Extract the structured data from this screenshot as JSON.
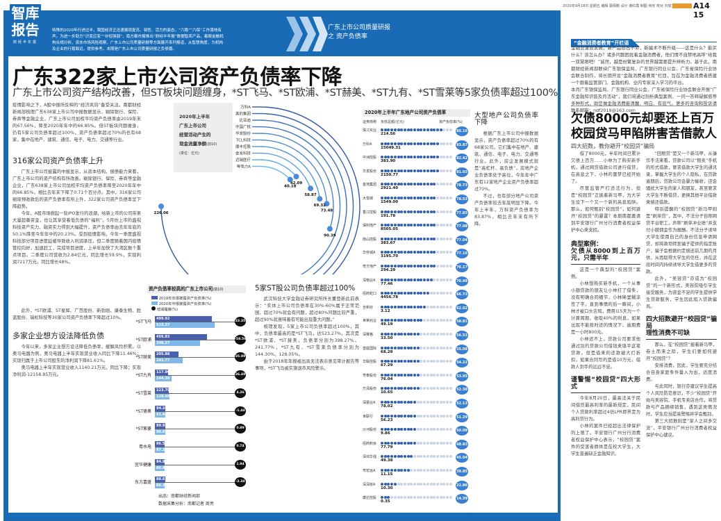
{
  "masthead": {
    "logo_line1": "智库",
    "logo_line2": "报告",
    "logo_sub": "财经半年报",
    "intro": "特殊的2020年行进过半，我国经济正迅速展现复苏、韧性、活力的姿态，“六稳”“六保”工作落地有声。为进一步助力“识变应变”“补短强弱”，南方都市报推出“财经半年报”数据智库产品，着眼金融机构合规分析、资本市场风险观察、广东上市公司质量研报等方面展开系列报道，从智慧角度，为机构及企业的行稳致远，提供参考。本期是广东上市公司质量研报之负债篇。",
    "series_line1": "广东上市公司质量研报",
    "series_line2": "之 资产负债率"
  },
  "headline": {
    "title": "广东322家上市公司资产负债率下降",
    "subtitle": "广东上市公司资产结构改善，但ST板块问题缠身，*ST飞马、*ST欧浦、*ST赫美、*ST九有、*ST雪莱等5家负债率超过100%"
  },
  "left": {
    "lead": "疫情影响之下，A股中报所反映的“经济风向”备受关注。南都财经新闻部梳理广东638家上市公司中报数据显示，剔除银行、保险、券商等金融企业，广东上市公司加权平均资产负债率由2019年末的67.56%，降至2020年年中的66.85%。但ST板块问题缠身，仍有5家公司负债率超过100%，资产负债率超过70%的也有68家，集中在地产、建筑、通信、电子、电力、交通等行业。",
    "h1": "316家公司资产负债率上升",
    "p1": "广东上市公司披露的中报显示，从资本结构、偿债能力来看，广东上市公司的资产结构有所改善。剔除银行、保险、券商等金融企业，广东638家上市公司加权平均资产负债率降至2020年年中的66.85%，相比去年末下降了0.71个百分点。其中，316家公司剔除预收款后的资产负债率有所上升，322家公司资产负债率呈下降趋势。",
    "p2": "今年，A股市场掀起一轮IPO发行的浪潮，给新上市的公司带来大量超募资金，也让其享受着低负债的“福利”。5月份上市的盛视科技资产实力、融资实力得到大幅提升，资产负债率由去年年底的50.1%降至今年年中的20.23%。受到疫情影响，今年一季度盛视科技部分项目进度延缓导致收入利润承压，但二季度随着国内疫情管控向好，加速赶工，完成项目进度，上半年加快了大湾区数个重点项目。二季度公司营收为2.84亿元，同比增长59.9%，实现利润7217万元，同比增长48%。",
    "p3": "此外，*ST欧浦、ST星辉、广百股份、新劲刚、康泰生物、胜蓝股份、瑞松科技等30家公司资产负债率下降超过10%。",
    "h2": "多家企业想方设法降低负债",
    "p4": "今年以来，多家企业想方设法降低负债率，缓解风险积累。以奥马电器为例，奥马电器上半年实现营业收入同比下降11.46%；实现归属于上市公司股东的净利润下降81.61%。",
    "p5": "奥马电器上半年实现营业收入1140.21万元，同比下降；实现净利润-12158.85万元。"
  },
  "middle": {
    "h": "5家ST股公司负债率超过100%",
    "p1": "武汉科技大学金融证券研究所所长董登新此前表示：“实体上市公司负债率在30%-60%属于正常范围，超过70%就会有问题，超过80%问题比较严重，超过90%就意味着有可能出现重大问题。”",
    "p2": "梳理发现，5家上市公司负债率超过100%，其中，负债率最高的是*ST飞马，达523.27%，其次是*ST欧浦、*ST赫美，负债率分别为398.27%、241.77%，*ST九有、*ST雪莱负债率分别为144.30%、128.05%。",
    "p3": "由于2018年年报被出具无法表示意见审计报告等事项，*ST飞马被实施退市风险警示。"
  },
  "realty_col": {
    "h": "大型地产公司负债率下降",
    "p1": "根据广东上市公司中报数据显示，资产负债率超过70%的有68家公司，它们集中在地产、建筑、通信、电子、电力、交通等行业。此外，房企发展模式就是“高杠杆、高负债”，房地产企业负债率处于高位，今年年中广东有12家地产企业资产负债率超过70%。",
    "p2": "不过，也有部分地产公司资产负债率较去年底明显下降。今年上半年，万科资产负债率为83.87%，相比去年末有所下降。"
  },
  "radial_chart": {
    "title_lines": [
      "2020年上半年",
      "广东上市公司",
      "经营活动产生的",
      "现金流量净额"
    ],
    "title_note": "(前10)",
    "unit": "(单位：亿元)",
    "chart_data": {
      "type": "radial-bar",
      "categories": [
        "万科A",
        "美的集团",
        "比亚迪",
        "中国广核",
        "华发股份",
        "TCL科技",
        "顺丰控股",
        "金发科技",
        "迈瑞医疗",
        "粤电力A"
      ],
      "values": [
        226.06,
        184.05,
        155.38,
        150.97,
        90.39,
        73.48,
        69.32,
        58.87,
        42.09,
        40.18
      ]
    },
    "colors": {
      "outer": "#2f5aa8",
      "inner": "#62b5e8"
    }
  },
  "realty_chart": {
    "title": "2020年上半年广东地产公司资产负债率",
    "col_name": "证券简称",
    "col_debt": "负债总额(亿元)",
    "col_rate": "资产负债率(%)",
    "chart_data": {
      "type": "dot-bar",
      "categories": [
        "珠江实业",
        "万科A",
        "中洲控股",
        "华发股份",
        "金地集团",
        "大悦城",
        "香江控股",
        "保利地产",
        "南山控股",
        "华侨城A",
        "粤方地产",
        "深物业A",
        "招商蛇口",
        "全新好",
        "世荣兆业",
        "深赛格",
        "皇庭国际",
        "华联控股",
        "粤泰股份",
        "万泽股份",
        "深振业A",
        "世联行",
        "沙河股份",
        "招商积余",
        "深圳华强",
        "粤宏远A",
        "深深房A",
        "康达控股"
      ],
      "debt": [
        "214.56",
        "15049.31",
        "383.90",
        "2150.77",
        "2921.40",
        "1549.00",
        "191.78",
        "8505.05",
        "383.67",
        "3195.70",
        "294.29",
        "77.46",
        "4456.78",
        "3.12",
        "49.19",
        "33.50",
        "68.29",
        "67.29",
        "76.04",
        "10.65",
        "78.02",
        "56.23",
        "9.86",
        "77.79",
        "49.38",
        "11.15",
        "10.30",
        "0.35"
      ],
      "rate": [
        85.16,
        83.87,
        82.42,
        81.03,
        78.73,
        78.53,
        77.85,
        77.08,
        77.04,
        77.16,
        76.17,
        70.49,
        66.73,
        62.02,
        58.81,
        56.51,
        55.08,
        54.22,
        53.95,
        52.38,
        52.13,
        51.29,
        50.09,
        48.83,
        45.04,
        39.85,
        22.86,
        14.39
      ]
    },
    "colors": {
      "filled": "#2f5fb0",
      "empty": "#c9d3e2",
      "badge": "#3a7fd0"
    }
  },
  "st_chart": {
    "title": "资产负债率较高的广东上市公司",
    "title_note": "(前10)",
    "legend": [
      "2019年年报披露资产负债率(%)",
      "2020年中报披露资产负债率(%)",
      "增减幅度(%)"
    ],
    "chart_data": {
      "type": "bar",
      "categories": [
        "*ST飞马",
        "*ST欧浦",
        "*ST赫美",
        "*ST九有",
        "*ST雪莱",
        "*ST德奥",
        "*ST索菱",
        "粤水电",
        "宜华健康",
        "东方嘉盛"
      ],
      "series": [
        {
          "name": "2019年年报披露资产负债率(%)",
          "values": [
            499.92,
            456.83,
            205.88,
            117.9,
            123.79,
            94.28,
            89.98,
            86.5,
            84.88,
            88.61
          ]
        },
        {
          "name": "2020年中报披露资产负债率(%)",
          "values": [
            523.27,
            398.27,
            241.77,
            144.3,
            128.05,
            92.84,
            90.87,
            87.24,
            86.82,
            86.27
          ]
        },
        {
          "name": "增减幅度(%)",
          "values": [
            "23.35",
            "-58.56",
            "35.89",
            "26.40",
            "4.26",
            "-1.44",
            "0.89",
            "0.74",
            "1.94",
            "-2.34"
          ]
        }
      ]
    },
    "colors": {
      "y2019": "#4a5fb0",
      "y2020": "#7fb8e8",
      "change": "#111111"
    },
    "credit1": "出品：南都财经新闻部",
    "credit2": "数据采集分析：南都记者 周亮"
  },
  "right": {
    "dateline": "2020年9月18日 星期五 编辑 蔡佩鹏 设计 谢红霞 制图 何欣 校对 刘俊文",
    "page_no": "A14 15",
    "column_tag": "“金融消费者教育”开栏语",
    "column_text1": "金融业蓬勃发展，新产品层出不穷，新骗术不断升级——这是什么？能买什么？该怎么办？诸多问题困扰着金融消费者，他们情不自禁地高呼“给我一双慧眼吧！”诚然，越是纷繁复杂的世界越需要提升辨析力。基于此，南都财经新闻部联袂广东银保监局、广东银行同业公会、广东省保险行业协会联合制作，将长期开设“金融消费者教育”栏目，旨在为金融消费者搭建一个跟着监管部门、金融机构、业内专家深入学习的平台。",
    "column_text2": "本月广东银保监局、广东银行同业公会、广东省保险行业协会联合开展“广东金融知识普及月活动”，我们将通过剖析典型案例、一问一答释疑解惑等多种形式，助您做金融消费能清醒、明白、有底气。更多的咨询和投诉请联系邮箱：ndf2019@163.com",
    "headline_1": "欠债8000元却要还上百万",
    "headline_2": "校园贷马甲陷阱害苦借款人",
    "subhead": "四大招数，教你避开“校园贷”骗局",
    "c1p1": "借了8000元，半年时间已累计欠债上百万……小林为了购买新手机，通过网贷借款公司进行借贷，在高息之下，小林的噩梦已经开始了。",
    "c1p2": "尽管监管严打违法行为，但是“校园贷”正披着新马甲，为大学生设下一个又一个新的高息陷阱。那么，如何甄别“校园贷”，如何避开“校园贷”的暴雷？本期南都邀请到平安银行广州分行消费者权益保护中心来支招。",
    "case_label": "典型案例：",
    "case_title": "欠债从8000到上百万元，只需半年",
    "c1p3": "这是一个典型的“校园贷”案例。",
    "c1p4": "小林想购买新手机，一个从事小额贷款的朋友让小林打了借条，没有明确合同细节，小林稀里糊涂签了字。直到事情的后一瞬间，小林才被口头告知，费用以5天为一个计算周期，收取40%的利息，如果出现不能按时还的情况下，逾期费是一小时800元。",
    "c1p5": "小林还不上，贷款公司要求他通过别的贷款公司借钱来填平这笔贷款，但是借来的还款被大打折扣，如果合同写的是借10万元，借款人到手的远远不足。",
    "sub2": "谨警惕“校园贷”四大形式",
    "c1p6": "今年8月20日，最高法关于民间借贷最高利率的最新规定，民间个人贷款利率超过4倍LPR即界定为高利贷行为。",
    "c1p7": "小林的案件已经超出法律保护的上限了。平安银行广州分行消费者权益保护中心表示，“校园贷”案件的受害者群体是在校大学生，大学生普遍缺乏金融知识。",
    "c2p1": "“回租贷”是又一个新马甲，从操作手法来看，贷款公司以“租卖”手机的形式借款，要求借款大学生的通讯录，掌握大学生的个人隐私，在贷款逾期后，贷款公司会暴力催收，还会骚扰大学生的家人和朋友，甚至要求大学生不断借贷，更换其他平台借款来偿还借款。",
    "c2p2": "特别提醒的“校园贷”新马甲则是“刷单贷”，其中，不法分子自称网贷平台职工，声称“刷单冲业绩”并支付小额佣金作为报酬。不法分子诱导大学生使用自己的身份信息申请网贷，却将款项转至骗子提供的指定账户，骗子会根据约定偿还前几期的月供，从而取得大学生的信任，并在这段时间内持续诱导大学生借更多的贷款。",
    "c2p3": "此外，“美容贷”亦成为“校园贷”的一个新形式，美容院吸引学生接受服务，为资金不足的学生提供学生贷款服务，学生因此陷入贷款骗局。",
    "sub3_1": "四大招数避开“校园贷”骗局",
    "sub3_2": "理性消费不可缺",
    "c2p4": "那么，在“校园贷”披着新马甲，卷土而来之际，学生们要如何避开“校园贷”？",
    "c2p5": "安排消费，因此，学生要充分结合自身家庭条件量入为出，适度消费。",
    "c2p6": "与此同时，银行亦建议学生提高个人风险防范意识，不少“校园贷”开始与美容院、手机专卖店合作，将贷款与产品捆绑销售，遇到这类情况时，学生应当提高警惕并学会甄别。",
    "c2p7": "第三大招数则是“家人之间多交流”，平安银行广州分行消费者权益保护中心建议。"
  }
}
